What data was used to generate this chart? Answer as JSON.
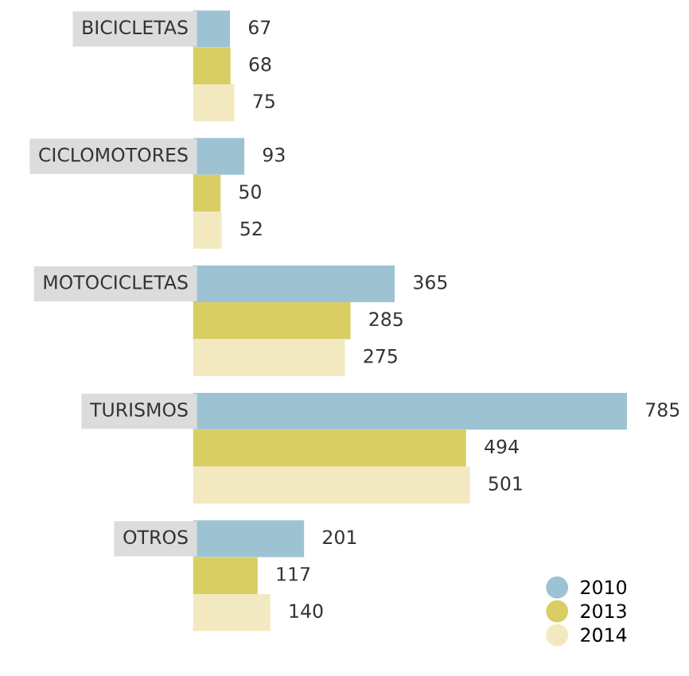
{
  "chart_data": {
    "type": "bar",
    "orientation": "horizontal",
    "data_labels": true,
    "legend": "bottom right",
    "categories": [
      "BICICLETAS",
      "CICLOMOTORES",
      "MOTOCICLETAS",
      "TURISMOS",
      "OTROS"
    ],
    "series": [
      {
        "name": "2010",
        "color": "#9dc3d3",
        "values": [
          67,
          93,
          365,
          785,
          201
        ]
      },
      {
        "name": "2013",
        "color": "#d9ce64",
        "values": [
          68,
          50,
          285,
          494,
          117
        ]
      },
      {
        "name": "2014",
        "color": "#f3e9c0",
        "values": [
          75,
          52,
          275,
          501,
          140
        ]
      }
    ]
  }
}
